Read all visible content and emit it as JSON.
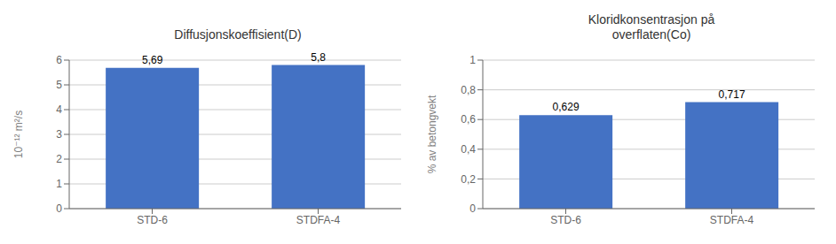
{
  "chart_data": [
    {
      "type": "bar",
      "title": "Diffusjonskoeffisient(D)",
      "categories": [
        "STD-6",
        "STDFA-4"
      ],
      "values": [
        5.69,
        5.8
      ],
      "value_labels": [
        "5,69",
        "5,8"
      ],
      "data_labels": true,
      "ylabel": "10⁻¹² m²/s",
      "ylim": [
        0,
        6
      ],
      "yticks": [
        0,
        1,
        2,
        3,
        4,
        5,
        6
      ],
      "color": "#4472C4",
      "grid": true
    },
    {
      "type": "bar",
      "title": "Kloridkonsentrasjon på\noverflaten(Co)",
      "categories": [
        "STD-6",
        "STDFA-4"
      ],
      "values": [
        0.629,
        0.717
      ],
      "value_labels": [
        "0,629",
        "0,717"
      ],
      "data_labels": true,
      "ylabel": "% av betongvekt",
      "ylim": [
        0,
        1
      ],
      "yticks": [
        0,
        {
          "value": 0.2,
          "label": "0,2"
        },
        {
          "value": 0.4,
          "label": "0,4"
        },
        {
          "value": 0.6,
          "label": "0,6"
        },
        {
          "value": 0.8,
          "label": "0,8"
        },
        1
      ],
      "color": "#4472C4",
      "grid": true
    }
  ]
}
